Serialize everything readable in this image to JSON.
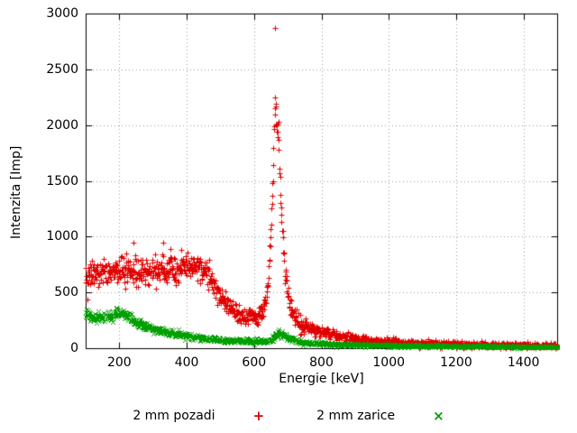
{
  "window": {
    "artifact_color": "#cc2200"
  },
  "chart_data": {
    "type": "scatter",
    "title": "",
    "xlabel": "Energie [keV]",
    "ylabel": "Intenzita [Imp]",
    "xlim": [
      100,
      1500
    ],
    "ylim": [
      0,
      3000
    ],
    "xticks": [
      200,
      400,
      600,
      800,
      1000,
      1200,
      1400
    ],
    "yticks": [
      0,
      500,
      1000,
      1500,
      2000,
      2500,
      3000
    ],
    "grid": "dotted",
    "legend_position": "bottom-center",
    "series": [
      {
        "name": "2 mm pozadi",
        "marker": "plus",
        "marker_glyph": "+",
        "color": "#e10000",
        "noise_factor": 2.3,
        "profile": [
          [
            100,
            600
          ],
          [
            120,
            650
          ],
          [
            150,
            680
          ],
          [
            200,
            700
          ],
          [
            250,
            690
          ],
          [
            300,
            690
          ],
          [
            350,
            700
          ],
          [
            400,
            720
          ],
          [
            430,
            730
          ],
          [
            460,
            680
          ],
          [
            480,
            560
          ],
          [
            500,
            470
          ],
          [
            520,
            390
          ],
          [
            540,
            330
          ],
          [
            560,
            300
          ],
          [
            580,
            275
          ],
          [
            600,
            270
          ],
          [
            615,
            285
          ],
          [
            630,
            370
          ],
          [
            640,
            520
          ],
          [
            648,
            900
          ],
          [
            655,
            1500
          ],
          [
            660,
            2000
          ],
          [
            663,
            2180
          ],
          [
            668,
            2050
          ],
          [
            675,
            1600
          ],
          [
            682,
            1150
          ],
          [
            690,
            750
          ],
          [
            700,
            480
          ],
          [
            710,
            350
          ],
          [
            725,
            265
          ],
          [
            750,
            205
          ],
          [
            775,
            175
          ],
          [
            800,
            150
          ],
          [
            850,
            110
          ],
          [
            900,
            85
          ],
          [
            950,
            70
          ],
          [
            1000,
            58
          ],
          [
            1050,
            48
          ],
          [
            1100,
            42
          ],
          [
            1150,
            38
          ],
          [
            1200,
            34
          ],
          [
            1250,
            30
          ],
          [
            1300,
            28
          ],
          [
            1350,
            26
          ],
          [
            1400,
            25
          ],
          [
            1450,
            24
          ],
          [
            1500,
            23
          ]
        ],
        "outliers": [
          [
            662,
            2870
          ],
          [
            243,
            950
          ],
          [
            330,
            945
          ],
          [
            352,
            890
          ],
          [
            383,
            880
          ]
        ]
      },
      {
        "name": "2 mm zarice",
        "marker": "cross",
        "marker_glyph": "×",
        "color": "#00a000",
        "noise_factor": 1.3,
        "profile": [
          [
            100,
            300
          ],
          [
            130,
            270
          ],
          [
            160,
            275
          ],
          [
            200,
            320
          ],
          [
            220,
            300
          ],
          [
            250,
            230
          ],
          [
            280,
            195
          ],
          [
            300,
            175
          ],
          [
            350,
            140
          ],
          [
            400,
            110
          ],
          [
            450,
            92
          ],
          [
            500,
            78
          ],
          [
            550,
            68
          ],
          [
            600,
            62
          ],
          [
            630,
            62
          ],
          [
            650,
            80
          ],
          [
            665,
            120
          ],
          [
            675,
            135
          ],
          [
            685,
            125
          ],
          [
            700,
            95
          ],
          [
            720,
            70
          ],
          [
            750,
            52
          ],
          [
            800,
            40
          ],
          [
            850,
            34
          ],
          [
            900,
            30
          ],
          [
            1000,
            24
          ],
          [
            1100,
            20
          ],
          [
            1200,
            17
          ],
          [
            1300,
            15
          ],
          [
            1400,
            13
          ],
          [
            1500,
            12
          ]
        ],
        "outliers": []
      }
    ]
  }
}
